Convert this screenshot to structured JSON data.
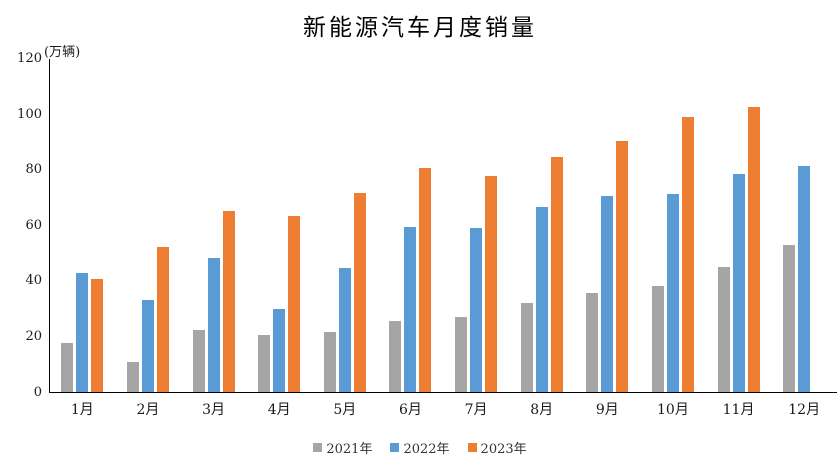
{
  "title": "新能源汽车月度销量",
  "unit_label": "(万辆)",
  "legend": [
    {
      "label": "2021年",
      "color": "#A5A5A5"
    },
    {
      "label": "2022年",
      "color": "#5B9BD5"
    },
    {
      "label": "2023年",
      "color": "#ED7D31"
    }
  ],
  "chart_data": {
    "type": "bar",
    "title": "新能源汽车月度销量",
    "ylabel": "(万辆)",
    "xlabel": "",
    "categories": [
      "1月",
      "2月",
      "3月",
      "4月",
      "5月",
      "6月",
      "7月",
      "8月",
      "9月",
      "10月",
      "11月",
      "12月"
    ],
    "series": [
      {
        "name": "2021年",
        "color": "#A5A5A5",
        "values": [
          17.9,
          11.0,
          22.6,
          20.6,
          21.7,
          25.6,
          27.1,
          32.1,
          35.7,
          38.3,
          45.0,
          53.1
        ]
      },
      {
        "name": "2022年",
        "color": "#5B9BD5",
        "values": [
          43.1,
          33.4,
          48.4,
          29.9,
          44.7,
          59.6,
          59.3,
          66.6,
          70.8,
          71.4,
          78.6,
          81.4
        ]
      },
      {
        "name": "2023年",
        "color": "#ED7D31",
        "values": [
          40.8,
          52.5,
          65.3,
          63.6,
          71.7,
          80.6,
          78.0,
          84.6,
          90.4,
          99.0,
          102.6,
          null
        ]
      }
    ],
    "ylim": [
      0,
      120
    ],
    "yticks": [
      0,
      20,
      40,
      60,
      80,
      100,
      120
    ],
    "grid": false,
    "legend_position": "bottom"
  }
}
